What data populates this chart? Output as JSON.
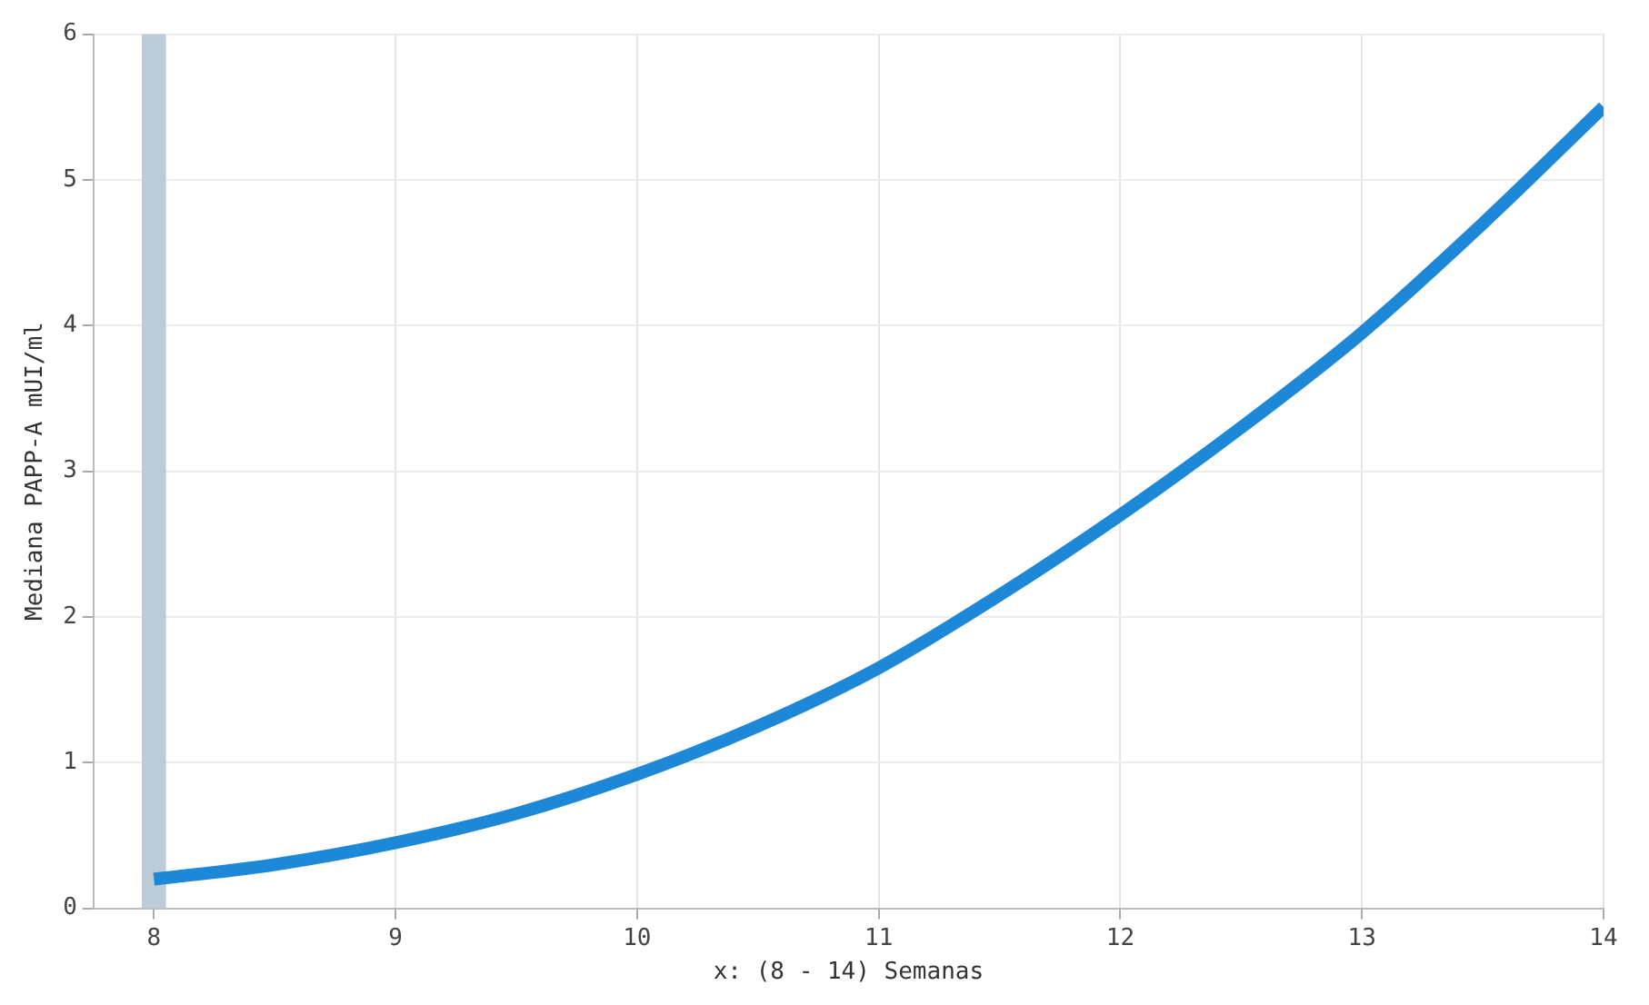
{
  "chart_data": {
    "type": "line",
    "xlabel": "x: (8 - 14) Semanas",
    "ylabel": "Mediana PAPP-A mUI/ml",
    "x": [
      8,
      8.5,
      9,
      9.5,
      10,
      10.5,
      11,
      11.5,
      12,
      12.5,
      13,
      13.5,
      14
    ],
    "series": [
      {
        "color": "#1e88d8",
        "values": [
          0.2,
          0.3,
          0.45,
          0.65,
          0.92,
          1.25,
          1.65,
          2.15,
          2.7,
          3.3,
          3.95,
          4.7,
          5.5
        ]
      }
    ],
    "xlim": [
      7.75,
      14
    ],
    "bands": [
      {
        "axis": "x",
        "from": 7.95,
        "to": 8.05,
        "color": "#bccbd8"
      }
    ],
    "xticks": [
      8,
      9,
      10,
      11,
      12,
      13,
      14
    ],
    "ylim": [
      0,
      6
    ],
    "yticks": [
      0,
      1,
      2,
      3,
      4,
      5,
      6
    ],
    "grid": true,
    "marker": "none",
    "line_style": "solid",
    "legend": false
  }
}
